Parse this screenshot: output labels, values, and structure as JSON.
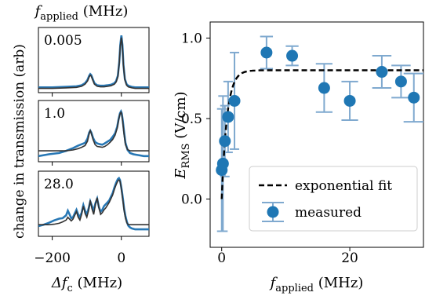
{
  "chart_data": [
    {
      "type": "line",
      "title_main": "f",
      "title_sub": "applied",
      "title_unit": "(MHz)",
      "ylabel": "change in transmission (arb)",
      "xlabel_main": "Δf",
      "xlabel_sub": "c",
      "xlabel_unit": "(MHz)",
      "xlim": [
        -240,
        80
      ],
      "xticks": [
        -200,
        0
      ],
      "xtick_labels": [
        "−200",
        "0"
      ],
      "panels": [
        {
          "label": "0.005",
          "ylim": [
            -0.08,
            1.15
          ],
          "measured_color": "#2878b5",
          "fit_color": "#333333",
          "measured": {
            "x": [
              -240,
              -200,
              -160,
              -130,
              -115,
              -105,
              -98,
              -93,
              -90,
              -87,
              -83,
              -78,
              -70,
              -60,
              -50,
              -40,
              -30,
              -20,
              -15,
              -10,
              -6,
              -3,
              0,
              3,
              6,
              10,
              15,
              20,
              30,
              40,
              60,
              80
            ],
            "y": [
              0.02,
              0.02,
              0.03,
              0.04,
              0.06,
              0.1,
              0.16,
              0.24,
              0.27,
              0.25,
              0.18,
              0.1,
              0.06,
              0.05,
              0.05,
              0.06,
              0.07,
              0.1,
              0.14,
              0.24,
              0.5,
              0.82,
              1.0,
              0.82,
              0.45,
              0.18,
              0.08,
              0.05,
              0.03,
              0.02,
              0.02,
              0.02
            ]
          },
          "fit": {
            "x": [
              -240,
              -200,
              -160,
              -130,
              -115,
              -105,
              -98,
              -93,
              -90,
              -87,
              -83,
              -78,
              -70,
              -60,
              -50,
              -40,
              -30,
              -20,
              -15,
              -10,
              -6,
              -3,
              0,
              3,
              6,
              10,
              15,
              20,
              30,
              40,
              60,
              80
            ],
            "y": [
              0.0,
              0.0,
              0.01,
              0.02,
              0.04,
              0.08,
              0.14,
              0.22,
              0.25,
              0.23,
              0.16,
              0.08,
              0.04,
              0.03,
              0.03,
              0.04,
              0.05,
              0.08,
              0.12,
              0.22,
              0.48,
              0.8,
              0.96,
              0.8,
              0.43,
              0.16,
              0.06,
              0.03,
              0.01,
              0.0,
              0.0,
              0.0
            ]
          }
        },
        {
          "label": "1.0",
          "ylim": [
            -0.25,
            1.15
          ],
          "measured_color": "#2878b5",
          "fit_color": "#333333",
          "measured": {
            "x": [
              -240,
              -210,
              -180,
              -160,
              -140,
              -125,
              -115,
              -105,
              -98,
              -93,
              -90,
              -87,
              -82,
              -76,
              -70,
              -62,
              -55,
              -48,
              -40,
              -32,
              -25,
              -18,
              -12,
              -8,
              -4,
              -1,
              1,
              4,
              8,
              12,
              18,
              25,
              35,
              50,
              65,
              80
            ],
            "y": [
              -0.12,
              -0.08,
              -0.05,
              0.0,
              0.06,
              0.12,
              0.15,
              0.18,
              0.28,
              0.42,
              0.46,
              0.42,
              0.3,
              0.2,
              0.17,
              0.15,
              0.14,
              0.17,
              0.21,
              0.25,
              0.32,
              0.4,
              0.55,
              0.72,
              0.86,
              0.9,
              0.86,
              0.7,
              0.42,
              0.18,
              0.02,
              -0.05,
              -0.08,
              -0.1,
              -0.12,
              -0.12
            ]
          },
          "fit": {
            "x": [
              -240,
              -210,
              -180,
              -160,
              -140,
              -125,
              -115,
              -105,
              -98,
              -93,
              -90,
              -87,
              -82,
              -76,
              -70,
              -62,
              -55,
              -48,
              -40,
              -32,
              -25,
              -18,
              -12,
              -8,
              -4,
              -1,
              1,
              4,
              8,
              12,
              18,
              25,
              35,
              50,
              65,
              80
            ],
            "y": [
              0.0,
              0.0,
              0.0,
              0.0,
              0.02,
              0.05,
              0.08,
              0.12,
              0.22,
              0.4,
              0.46,
              0.4,
              0.26,
              0.14,
              0.1,
              0.09,
              0.08,
              0.1,
              0.14,
              0.2,
              0.26,
              0.36,
              0.52,
              0.7,
              0.84,
              0.88,
              0.84,
              0.66,
              0.36,
              0.14,
              0.03,
              0.0,
              0.0,
              0.0,
              0.0,
              0.0
            ]
          }
        },
        {
          "label": "28.0",
          "ylim": [
            -0.25,
            1.15
          ],
          "measured_color": "#2878b5",
          "fit_color": "#333333",
          "measured": {
            "x": [
              -240,
              -225,
              -210,
              -195,
              -180,
              -170,
              -160,
              -155,
              -150,
              -145,
              -140,
              -135,
              -130,
              -125,
              -120,
              -115,
              -110,
              -105,
              -100,
              -95,
              -90,
              -85,
              -80,
              -75,
              -70,
              -65,
              -60,
              -55,
              -50,
              -45,
              -40,
              -35,
              -30,
              -25,
              -20,
              -15,
              -10,
              -7,
              -4,
              -1,
              2,
              5,
              8,
              12,
              16,
              20,
              25,
              30,
              40,
              50,
              60,
              70,
              80
            ],
            "y": [
              -0.03,
              0.0,
              0.04,
              0.09,
              0.13,
              0.14,
              0.2,
              0.3,
              0.22,
              0.14,
              0.16,
              0.24,
              0.32,
              0.22,
              0.16,
              0.26,
              0.42,
              0.3,
              0.22,
              0.34,
              0.5,
              0.4,
              0.3,
              0.46,
              0.56,
              0.38,
              0.28,
              0.32,
              0.4,
              0.44,
              0.48,
              0.52,
              0.6,
              0.68,
              0.8,
              0.9,
              0.98,
              1.0,
              0.96,
              0.84,
              0.7,
              0.52,
              0.34,
              0.18,
              0.06,
              -0.02,
              -0.06,
              -0.08,
              -0.1,
              -0.1,
              -0.1,
              -0.1,
              -0.1
            ]
          },
          "fit": {
            "x": [
              -240,
              -225,
              -210,
              -195,
              -180,
              -170,
              -160,
              -155,
              -150,
              -145,
              -140,
              -135,
              -130,
              -125,
              -120,
              -115,
              -110,
              -105,
              -100,
              -95,
              -90,
              -85,
              -80,
              -75,
              -70,
              -65,
              -60,
              -55,
              -50,
              -45,
              -40,
              -35,
              -30,
              -25,
              -20,
              -15,
              -10,
              -7,
              -4,
              -1,
              2,
              5,
              8,
              12,
              16,
              20,
              25,
              30,
              40,
              50,
              60,
              70,
              80
            ],
            "y": [
              0.0,
              0.0,
              0.0,
              0.01,
              0.03,
              0.06,
              0.1,
              0.16,
              0.12,
              0.08,
              0.12,
              0.2,
              0.28,
              0.16,
              0.1,
              0.22,
              0.4,
              0.24,
              0.16,
              0.3,
              0.52,
              0.34,
              0.22,
              0.44,
              0.58,
              0.36,
              0.22,
              0.26,
              0.32,
              0.36,
              0.42,
              0.48,
              0.56,
              0.64,
              0.76,
              0.86,
              0.94,
              0.96,
              0.94,
              0.82,
              0.66,
              0.48,
              0.3,
              0.14,
              0.04,
              0.0,
              0.0,
              0.0,
              0.0,
              0.0,
              0.0,
              0.0,
              0.0
            ]
          }
        }
      ]
    },
    {
      "type": "scatter",
      "xlabel_main": "f",
      "xlabel_sub": "applied",
      "xlabel_unit": "(MHz)",
      "ylabel_main": "E",
      "ylabel_sub": "RMS",
      "ylabel_unit": "(V/cm)",
      "xlim": [
        -1.8,
        31.5
      ],
      "ylim": [
        -0.3,
        1.1
      ],
      "xticks": [
        0,
        20
      ],
      "xtick_labels": [
        "0",
        "20"
      ],
      "yticks": [
        0.0,
        0.5,
        1.0
      ],
      "ytick_labels": [
        "0.0",
        "0.5",
        "1.0"
      ],
      "marker_color": "#1f77b4",
      "errorbar_color": "#7fa9cf",
      "series": [
        {
          "name": "measured",
          "points": [
            {
              "x": 0.005,
              "y": 0.18,
              "yerr": 0.38,
              "xerr": 0.6
            },
            {
              "x": 0.2,
              "y": 0.22,
              "yerr": 0.42,
              "xerr": 0.6
            },
            {
              "x": 0.5,
              "y": 0.36,
              "yerr": 0.22,
              "xerr": 0.6
            },
            {
              "x": 1.0,
              "y": 0.51,
              "yerr": 0.22,
              "xerr": 0.6
            },
            {
              "x": 2.0,
              "y": 0.61,
              "yerr": 0.3,
              "xerr": 0.6
            },
            {
              "x": 7.0,
              "y": 0.91,
              "yerr": 0.1,
              "xerr": 1.0
            },
            {
              "x": 11.0,
              "y": 0.89,
              "yerr": 0.06,
              "xerr": 1.0
            },
            {
              "x": 16.0,
              "y": 0.69,
              "yerr": 0.15,
              "xerr": 1.3
            },
            {
              "x": 20.0,
              "y": 0.61,
              "yerr": 0.12,
              "xerr": 1.3
            },
            {
              "x": 25.0,
              "y": 0.79,
              "yerr": 0.1,
              "xerr": 1.5
            },
            {
              "x": 28.0,
              "y": 0.73,
              "yerr": 0.1,
              "xerr": 1.5
            },
            {
              "x": 30.0,
              "y": 0.63,
              "yerr": 0.15,
              "xerr": 1.6
            }
          ]
        },
        {
          "name": "exponential fit",
          "fit_amplitude": 0.8,
          "fit_rate_per_MHz": 1.2,
          "x_range": [
            0.0,
            31.5
          ]
        }
      ],
      "legend": {
        "position": "lower-right",
        "entries": [
          "exponential fit",
          "measured"
        ]
      }
    }
  ]
}
